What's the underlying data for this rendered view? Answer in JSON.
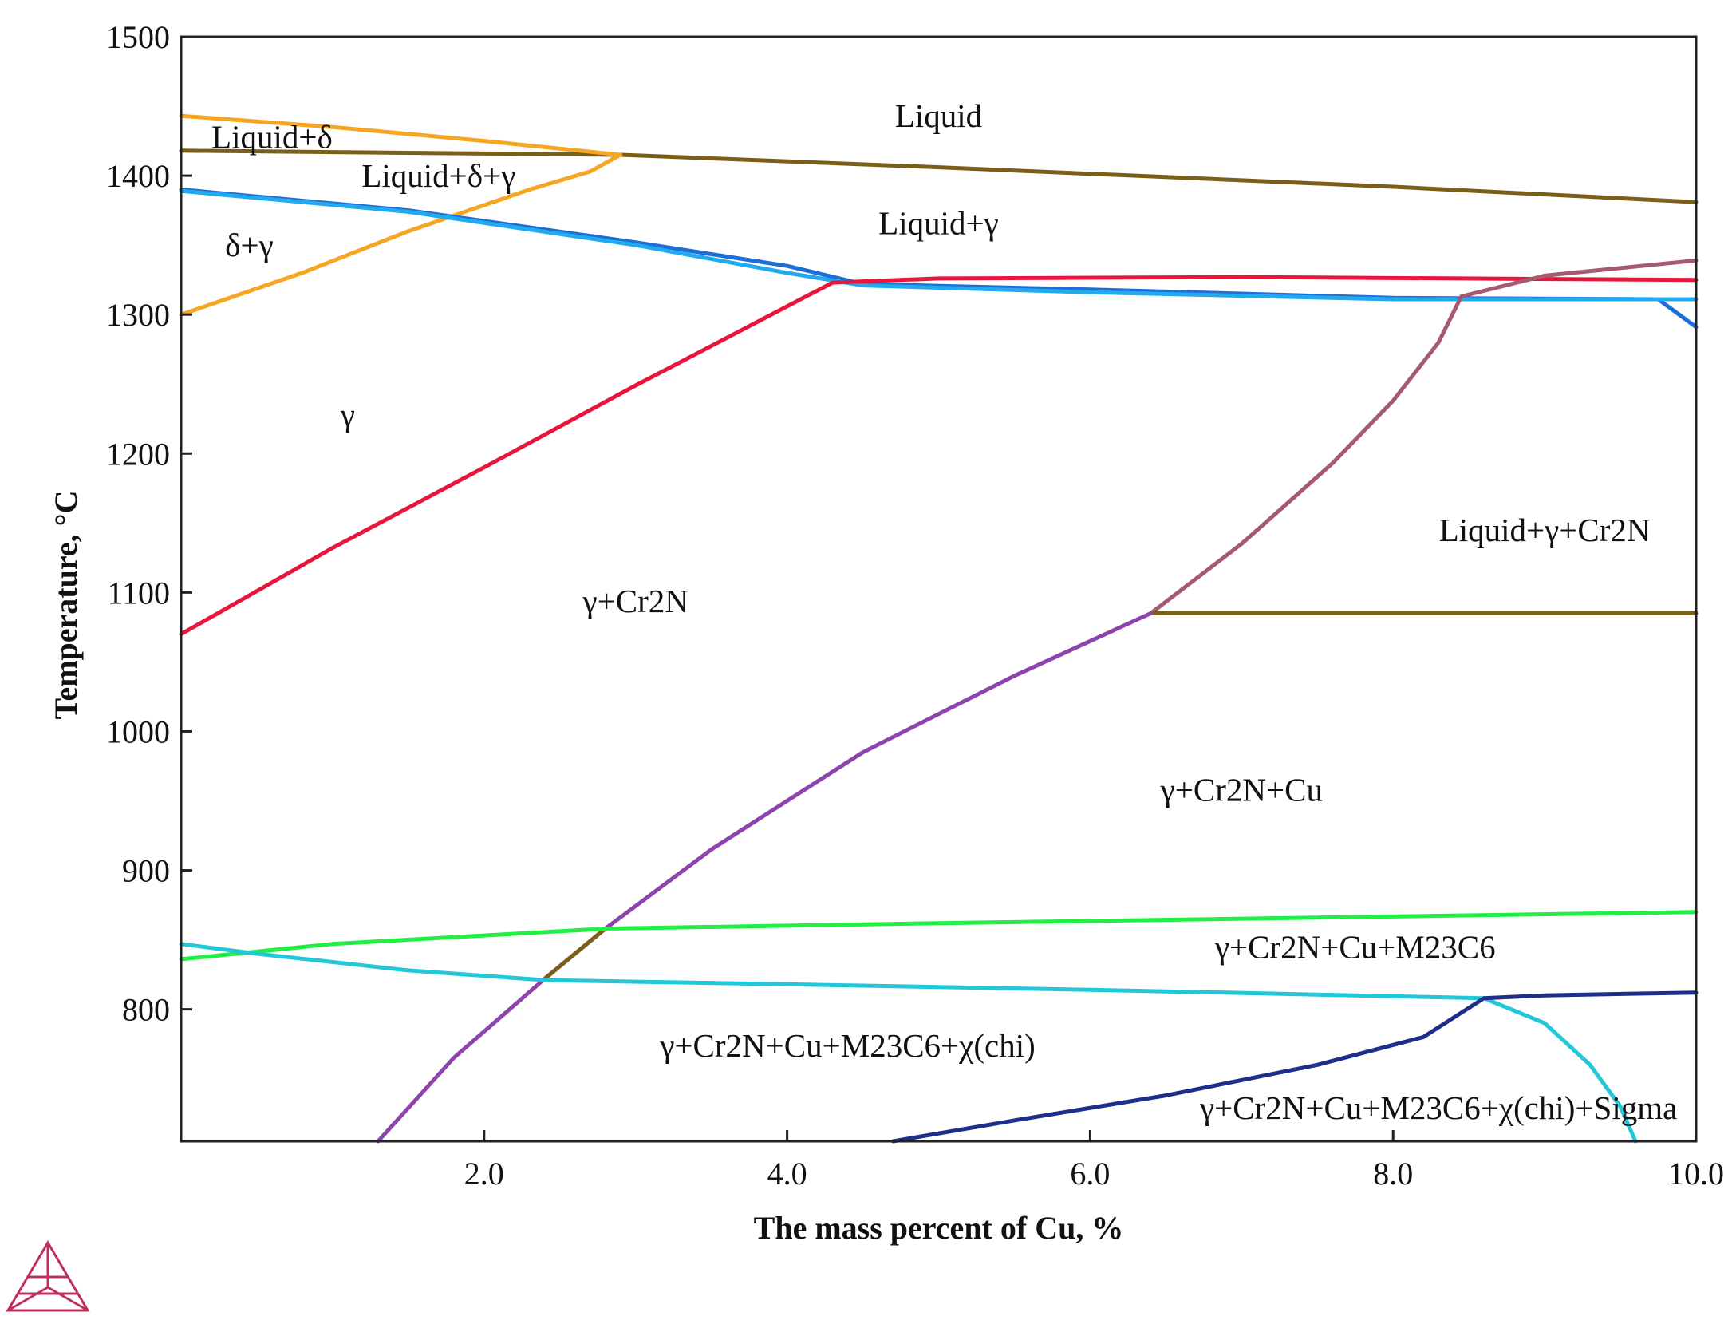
{
  "chart_data": {
    "type": "line",
    "title": "",
    "xlabel": "The mass percent of Cu, %",
    "ylabel": "Temperature, °C",
    "xlim": [
      0,
      10
    ],
    "ylim": [
      705,
      1500
    ],
    "grid": false,
    "x_ticks": [
      {
        "value": 2,
        "label": "2.0"
      },
      {
        "value": 4,
        "label": "4.0"
      },
      {
        "value": 6,
        "label": "6.0"
      },
      {
        "value": 8,
        "label": "8.0"
      },
      {
        "value": 10,
        "label": "10.0"
      }
    ],
    "y_ticks": [
      {
        "value": 800,
        "label": "800"
      },
      {
        "value": 900,
        "label": "900"
      },
      {
        "value": 1000,
        "label": "1000"
      },
      {
        "value": 1100,
        "label": "1100"
      },
      {
        "value": 1200,
        "label": "1200"
      },
      {
        "value": 1300,
        "label": "1300"
      },
      {
        "value": 1400,
        "label": "1400"
      },
      {
        "value": 1500,
        "label": "1500"
      }
    ],
    "series": [
      {
        "name": "liquidus",
        "color": "#7a5e1a",
        "points": [
          [
            0,
            1418
          ],
          [
            2.9,
            1415
          ],
          [
            5.0,
            1406
          ],
          [
            8.0,
            1392
          ],
          [
            10.0,
            1381
          ]
        ]
      },
      {
        "name": "liquid-delta-boundary",
        "color": "#f5a623",
        "points": [
          [
            0,
            1443
          ],
          [
            1.0,
            1435
          ],
          [
            2.0,
            1425
          ],
          [
            2.9,
            1415
          ]
        ]
      },
      {
        "name": "delta-gamma-boundary",
        "color": "#f5a623",
        "points": [
          [
            0,
            1300
          ],
          [
            0.8,
            1330
          ],
          [
            1.5,
            1360
          ],
          [
            2.3,
            1390
          ],
          [
            2.7,
            1403
          ],
          [
            2.9,
            1415
          ]
        ]
      },
      {
        "name": "gamma-solidus",
        "color": "#1e6ed8",
        "points": [
          [
            0,
            1390
          ],
          [
            1.5,
            1375
          ],
          [
            3.0,
            1352
          ],
          [
            4.0,
            1335
          ],
          [
            4.5,
            1322
          ],
          [
            6.0,
            1318
          ],
          [
            8.0,
            1312
          ],
          [
            9.75,
            1311
          ],
          [
            10.0,
            1291
          ]
        ]
      },
      {
        "name": "gamma-solidus-light",
        "color": "#22aaee",
        "points": [
          [
            0,
            1389
          ],
          [
            1.5,
            1374
          ],
          [
            3.0,
            1350
          ],
          [
            4.0,
            1330
          ],
          [
            4.5,
            1321
          ],
          [
            6.0,
            1316
          ],
          [
            8.0,
            1311
          ],
          [
            10.0,
            1311
          ]
        ]
      },
      {
        "name": "cr2n-solvus",
        "color": "#e8163c",
        "points": [
          [
            0,
            1070
          ],
          [
            1.0,
            1132
          ],
          [
            2.0,
            1190
          ],
          [
            3.0,
            1249
          ],
          [
            4.3,
            1323
          ],
          [
            5.0,
            1326
          ],
          [
            7.0,
            1327
          ],
          [
            10.0,
            1325
          ]
        ]
      },
      {
        "name": "cu-solvus-upper",
        "color": "#a65a72",
        "points": [
          [
            6.4,
            1085
          ],
          [
            7.0,
            1135
          ],
          [
            7.6,
            1193
          ],
          [
            8.0,
            1238
          ],
          [
            8.3,
            1280
          ],
          [
            8.45,
            1313
          ],
          [
            9.0,
            1328
          ],
          [
            10.0,
            1339
          ]
        ]
      },
      {
        "name": "cu-eutectic",
        "color": "#7a5e1a",
        "points": [
          [
            6.4,
            1085
          ],
          [
            10.0,
            1085
          ]
        ]
      },
      {
        "name": "cu-solvus",
        "color": "#8e44ad",
        "points": [
          [
            1.3,
            705
          ],
          [
            1.8,
            765
          ],
          [
            2.4,
            822
          ],
          [
            2.8,
            858
          ],
          [
            3.5,
            915
          ],
          [
            4.5,
            985
          ],
          [
            5.5,
            1040
          ],
          [
            6.4,
            1085
          ]
        ]
      },
      {
        "name": "cu-solvus-segment",
        "color": "#7a5e1a",
        "points": [
          [
            2.4,
            822
          ],
          [
            2.8,
            858
          ]
        ]
      },
      {
        "name": "m23c6-solvus",
        "color": "#22ee44",
        "points": [
          [
            0,
            836
          ],
          [
            1.0,
            847
          ],
          [
            2.8,
            858
          ],
          [
            5.0,
            862
          ],
          [
            10.0,
            870
          ]
        ]
      },
      {
        "name": "chi-solvus",
        "color": "#22c8d8",
        "points": [
          [
            0,
            847
          ],
          [
            0.5,
            840
          ],
          [
            1.5,
            828
          ],
          [
            2.4,
            821
          ],
          [
            4.0,
            818
          ],
          [
            6.0,
            814
          ],
          [
            8.6,
            808
          ]
        ]
      },
      {
        "name": "sigma-solvus-right",
        "color": "#22c8d8",
        "points": [
          [
            8.6,
            808
          ],
          [
            9.0,
            790
          ],
          [
            9.3,
            760
          ],
          [
            9.5,
            730
          ],
          [
            9.6,
            705
          ]
        ]
      },
      {
        "name": "sigma-solvus",
        "color": "#1e2f8a",
        "points": [
          [
            4.7,
            705
          ],
          [
            5.5,
            720
          ],
          [
            6.5,
            738
          ],
          [
            7.5,
            760
          ],
          [
            8.2,
            780
          ],
          [
            8.6,
            808
          ],
          [
            9.0,
            810
          ],
          [
            10.0,
            812
          ]
        ]
      }
    ],
    "annotations": [
      {
        "text": "Liquid",
        "x": 5.0,
        "y": 1443
      },
      {
        "text": "Liquid+δ",
        "x": 0.6,
        "y": 1428
      },
      {
        "text": "Liquid+δ+γ",
        "x": 1.7,
        "y": 1400
      },
      {
        "text": "Liquid+γ",
        "x": 5.0,
        "y": 1366
      },
      {
        "text": "δ+γ",
        "x": 0.45,
        "y": 1350
      },
      {
        "text": "γ",
        "x": 1.1,
        "y": 1228
      },
      {
        "text": "γ+Cr2N",
        "x": 3.0,
        "y": 1094
      },
      {
        "text": "Liquid+γ+Cr2N",
        "x": 9.0,
        "y": 1145
      },
      {
        "text": "γ+Cr2N+Cu",
        "x": 7.0,
        "y": 958
      },
      {
        "text": "γ+Cr2N+Cu+M23C6",
        "x": 7.75,
        "y": 845
      },
      {
        "text": "γ+Cr2N+Cu+M23C6+χ(chi)",
        "x": 4.4,
        "y": 774
      },
      {
        "text": "γ+Cr2N+Cu+M23C6+χ(chi)+Sigma",
        "x": 8.3,
        "y": 729
      }
    ]
  }
}
